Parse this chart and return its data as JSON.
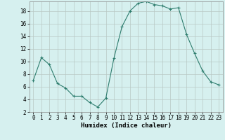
{
  "x": [
    0,
    1,
    2,
    3,
    4,
    5,
    6,
    7,
    8,
    9,
    10,
    11,
    12,
    13,
    14,
    15,
    16,
    17,
    18,
    19,
    20,
    21,
    22,
    23
  ],
  "y": [
    7.0,
    10.6,
    9.5,
    6.5,
    5.8,
    4.5,
    4.5,
    3.5,
    2.8,
    4.2,
    10.5,
    15.5,
    18.0,
    19.2,
    19.5,
    19.0,
    18.8,
    18.3,
    18.5,
    14.3,
    11.3,
    8.5,
    6.8,
    6.3
  ],
  "xlabel": "Humidex (Indice chaleur)",
  "ylim": [
    2,
    19.5
  ],
  "xlim": [
    -0.5,
    23.5
  ],
  "yticks": [
    2,
    4,
    6,
    8,
    10,
    12,
    14,
    16,
    18
  ],
  "xticks": [
    0,
    1,
    2,
    3,
    4,
    5,
    6,
    7,
    8,
    9,
    10,
    11,
    12,
    13,
    14,
    15,
    16,
    17,
    18,
    19,
    20,
    21,
    22,
    23
  ],
  "line_color": "#2e7d6e",
  "marker": "+",
  "bg_color": "#d6f0ef",
  "grid_color": "#b8c8c4",
  "tick_fontsize": 5.5,
  "label_fontsize": 6.5
}
